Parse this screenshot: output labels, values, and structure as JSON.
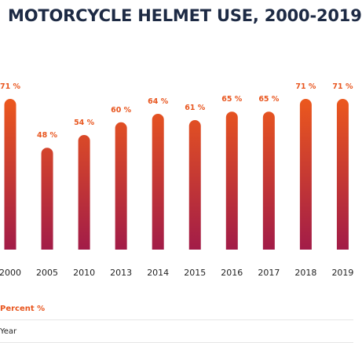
{
  "chart_data": {
    "type": "bar",
    "title": "MOTORCYCLE HELMET USE, 2000-2019",
    "categories": [
      "2000",
      "2005",
      "2010",
      "2013",
      "2014",
      "2015",
      "2016",
      "2017",
      "2018",
      "2019"
    ],
    "values": [
      71,
      48,
      54,
      60,
      64,
      61,
      65,
      65,
      71,
      71
    ],
    "data_labels": [
      "71 %",
      "48 %",
      "54 %",
      "60 %",
      "64 %",
      "61 %",
      "65 %",
      "65 %",
      "71 %",
      "71 %"
    ],
    "series": [
      {
        "values": [
          71,
          48,
          54,
          60,
          64,
          61,
          65,
          65,
          71,
          71
        ]
      }
    ],
    "grid": false,
    "legend": [
      {
        "label": "Percent %",
        "color": "#e8561f"
      },
      {
        "label": "Year",
        "color": "#222222"
      }
    ],
    "colors": {
      "bar_top": "#ee5a1c",
      "bar_bottom": "#a21c48",
      "data_label": "#e8561f",
      "title": "#1d2a44",
      "tick_label": "#222222"
    }
  }
}
